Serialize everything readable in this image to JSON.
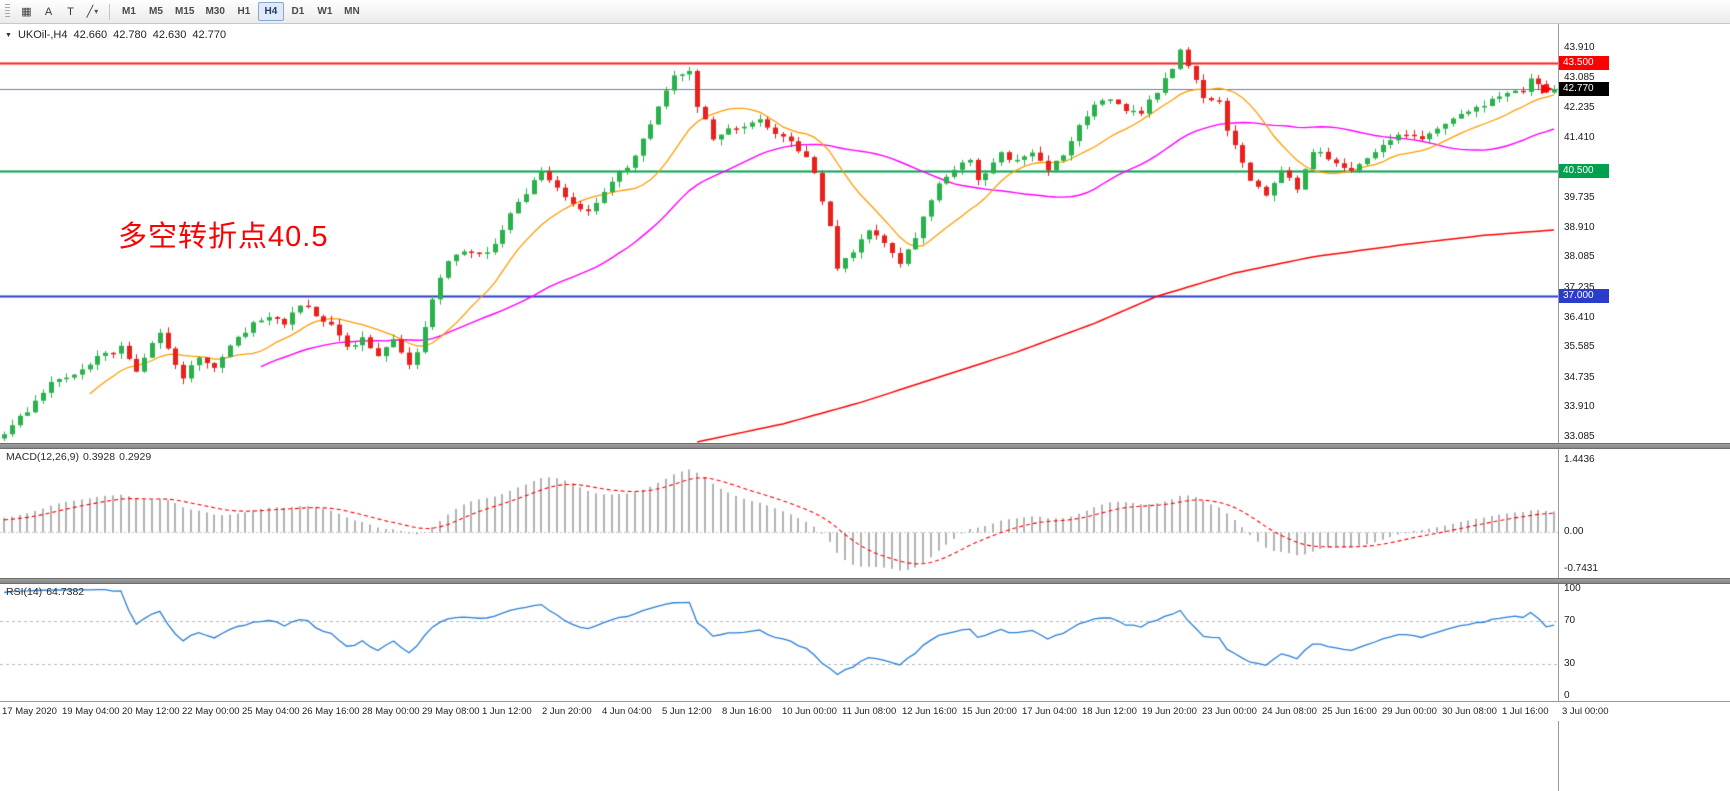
{
  "toolbar": {
    "dropdown_caret": "▾",
    "tool_icons": [
      {
        "name": "chart-window-icon",
        "glyph": "▦"
      },
      {
        "name": "text-label-a-icon",
        "glyph": "A"
      },
      {
        "name": "text-label-t-icon",
        "glyph": "T"
      },
      {
        "name": "trendline-tool-icon",
        "glyph": "╱",
        "caret": true
      }
    ],
    "timeframes": [
      {
        "label": "M1",
        "active": false
      },
      {
        "label": "M5",
        "active": false
      },
      {
        "label": "M15",
        "active": false
      },
      {
        "label": "M30",
        "active": false
      },
      {
        "label": "H1",
        "active": false
      },
      {
        "label": "H4",
        "active": true
      },
      {
        "label": "D1",
        "active": false
      },
      {
        "label": "W1",
        "active": false
      },
      {
        "label": "MN",
        "active": false
      }
    ]
  },
  "chart": {
    "collapse_icon": "▼",
    "title": {
      "symbol": "UKOil-,H4",
      "open": "42.660",
      "high": "42.780",
      "low": "42.630",
      "close": "42.770"
    },
    "annotation": {
      "text": "多空转折点40.5",
      "color": "#fe0000"
    }
  },
  "panels": {
    "macd": {
      "name": "MACD(12,26,9)",
      "macd_value": "0.3928",
      "signal_value": "0.2929"
    },
    "rsi": {
      "name": "RSI(14)",
      "value": "64.7382"
    }
  },
  "chart_data": {
    "type": "candlestick",
    "symbol": "UKOil-",
    "timeframe": "H4",
    "num_candles": 200,
    "last_close": 42.77,
    "ylim": {
      "min": 32.92,
      "max": 44.61
    },
    "up_color": "#2bb14c",
    "down_color": "#e8211d",
    "price_axis_ticks": [
      "43.910",
      "43.085",
      "42.235",
      "41.410",
      "39.735",
      "38.910",
      "38.085",
      "37.235",
      "36.410",
      "35.585",
      "34.735",
      "33.910",
      "33.085"
    ],
    "hlines": [
      {
        "price": 43.5,
        "color": "#fe1d1d",
        "line_width": 2,
        "label": "43.500",
        "badge_bg": "#fe0000"
      },
      {
        "price": 42.77,
        "color": "#5c85a8",
        "line_width": 1.2,
        "label": "42.770",
        "badge_bg": "#000000"
      },
      {
        "price": 40.5,
        "color": "#00a14e",
        "line_width": 2,
        "label": "40.500",
        "badge_bg": "#00a14e"
      },
      {
        "price": 37.0,
        "color": "#2b3cc8",
        "line_width": 2,
        "label": "37.000",
        "badge_bg": "#2b3cc8"
      }
    ],
    "close_waypoints": [
      [
        0,
        33.1
      ],
      [
        3,
        33.85
      ],
      [
        6,
        34.55
      ],
      [
        9,
        34.9
      ],
      [
        12,
        35.3
      ],
      [
        15,
        35.55
      ],
      [
        17,
        34.9
      ],
      [
        20,
        36.0
      ],
      [
        23,
        34.75
      ],
      [
        25,
        35.35
      ],
      [
        27,
        34.95
      ],
      [
        30,
        35.9
      ],
      [
        32,
        36.2
      ],
      [
        34,
        36.5
      ],
      [
        36,
        36.25
      ],
      [
        38,
        36.8
      ],
      [
        40,
        36.5
      ],
      [
        42,
        36.15
      ],
      [
        44,
        35.55
      ],
      [
        46,
        35.85
      ],
      [
        48,
        35.3
      ],
      [
        50,
        35.75
      ],
      [
        52,
        35.1
      ],
      [
        53,
        35.5
      ],
      [
        55,
        36.9
      ],
      [
        57,
        38.0
      ],
      [
        60,
        38.3
      ],
      [
        62,
        38.15
      ],
      [
        64,
        38.9
      ],
      [
        66,
        39.6
      ],
      [
        69,
        40.55
      ],
      [
        71,
        39.95
      ],
      [
        73,
        39.6
      ],
      [
        75,
        39.35
      ],
      [
        77,
        39.9
      ],
      [
        79,
        40.4
      ],
      [
        81,
        40.9
      ],
      [
        84,
        42.3
      ],
      [
        86,
        43.2
      ],
      [
        88,
        43.25
      ],
      [
        89,
        42.3
      ],
      [
        91,
        41.4
      ],
      [
        93,
        41.6
      ],
      [
        95,
        41.8
      ],
      [
        97,
        41.95
      ],
      [
        99,
        41.6
      ],
      [
        101,
        41.3
      ],
      [
        103,
        40.8
      ],
      [
        104,
        40.45
      ],
      [
        106,
        38.9
      ],
      [
        107,
        37.75
      ],
      [
        108,
        38.05
      ],
      [
        110,
        38.55
      ],
      [
        111,
        38.9
      ],
      [
        113,
        38.45
      ],
      [
        115,
        37.95
      ],
      [
        117,
        38.6
      ],
      [
        119,
        39.7
      ],
      [
        120,
        40.1
      ],
      [
        122,
        40.55
      ],
      [
        124,
        40.75
      ],
      [
        125,
        40.25
      ],
      [
        127,
        40.7
      ],
      [
        128,
        40.95
      ],
      [
        130,
        40.8
      ],
      [
        132,
        40.95
      ],
      [
        134,
        40.55
      ],
      [
        136,
        40.9
      ],
      [
        138,
        41.8
      ],
      [
        140,
        42.35
      ],
      [
        142,
        42.5
      ],
      [
        144,
        42.2
      ],
      [
        146,
        42.1
      ],
      [
        148,
        42.7
      ],
      [
        150,
        43.4
      ],
      [
        151,
        43.85
      ],
      [
        153,
        43.0
      ],
      [
        154,
        42.55
      ],
      [
        156,
        42.4
      ],
      [
        157,
        41.6
      ],
      [
        160,
        40.2
      ],
      [
        162,
        39.75
      ],
      [
        164,
        40.45
      ],
      [
        166,
        40.0
      ],
      [
        168,
        41.05
      ],
      [
        170,
        40.85
      ],
      [
        173,
        40.5
      ],
      [
        176,
        41.05
      ],
      [
        179,
        41.55
      ],
      [
        182,
        41.3
      ],
      [
        185,
        41.85
      ],
      [
        188,
        42.1
      ],
      [
        191,
        42.5
      ],
      [
        195,
        42.75
      ],
      [
        196,
        43.05
      ],
      [
        198,
        42.65
      ],
      [
        199,
        42.77
      ]
    ],
    "moving_averages": [
      {
        "name": "ma-fast",
        "color": "#ff9c00",
        "period": 12
      },
      {
        "name": "ma-mid",
        "color": "#ff00ff",
        "period": 34
      },
      {
        "name": "ma-slow",
        "color": "#fe0000",
        "waypoints": [
          [
            89,
            32.95
          ],
          [
            100,
            33.45
          ],
          [
            110,
            34.05
          ],
          [
            120,
            34.75
          ],
          [
            130,
            35.45
          ],
          [
            140,
            36.25
          ],
          [
            148,
            37.0
          ],
          [
            158,
            37.65
          ],
          [
            168,
            38.1
          ],
          [
            180,
            38.45
          ],
          [
            190,
            38.7
          ],
          [
            199,
            38.85
          ]
        ]
      }
    ],
    "indicators": {
      "macd": {
        "label": "MACD(12,26,9)",
        "fast": 12,
        "slow": 26,
        "signal_period": 9,
        "ylim": {
          "min": -0.915,
          "max": 1.662
        },
        "ticks": [
          "1.4436",
          "0.00",
          "-0.7431"
        ],
        "hist_color": "#b3b3b3",
        "signal_color": "#fe0000"
      },
      "rsi": {
        "label": "RSI(14)",
        "period": 14,
        "levels": [
          70,
          30
        ],
        "ticks": [
          "100",
          "70",
          "30",
          "0"
        ],
        "color": "#2a7fd4",
        "level_color": "#b9b9b9"
      }
    }
  },
  "time_axis": {
    "labels": [
      "17 May 2020",
      "19 May 04:00",
      "20 May 12:00",
      "22 May 00:00",
      "25 May 04:00",
      "26 May 16:00",
      "28 May 00:00",
      "29 May 08:00",
      "1 Jun 12:00",
      "2 Jun 20:00",
      "4 Jun 04:00",
      "5 Jun 12:00",
      "8 Jun 16:00",
      "10 Jun 00:00",
      "11 Jun 08:00",
      "12 Jun 16:00",
      "15 Jun 20:00",
      "17 Jun 04:00",
      "18 Jun 12:00",
      "19 Jun 20:00",
      "23 Jun 00:00",
      "24 Jun 08:00",
      "25 Jun 16:00",
      "29 Jun 00:00",
      "30 Jun 08:00",
      "1 Jul 16:00",
      "3 Jul 00:00"
    ]
  }
}
